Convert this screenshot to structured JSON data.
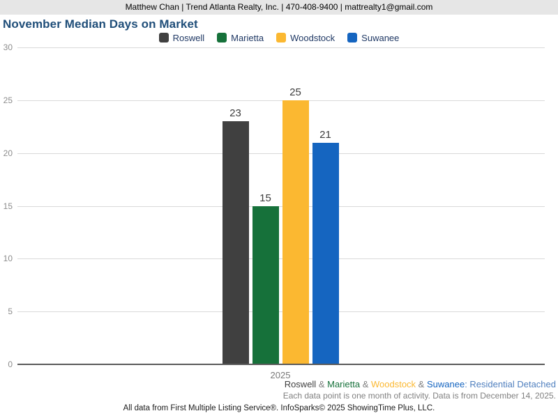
{
  "header": {
    "contact_line": "Matthew Chan | Trend Atlanta Realty, Inc. | 470-408-9400 | mattrealty1@gmail.com"
  },
  "title": "November Median Days on Market",
  "chart_data": {
    "type": "bar",
    "title": "November Median Days on Market",
    "categories": [
      "2025"
    ],
    "series": [
      {
        "name": "Roswell",
        "values": [
          23
        ],
        "color": "#404040"
      },
      {
        "name": "Marietta",
        "values": [
          15
        ],
        "color": "#16713a"
      },
      {
        "name": "Woodstock",
        "values": [
          25
        ],
        "color": "#fbb831"
      },
      {
        "name": "Suwanee",
        "values": [
          21
        ],
        "color": "#1565c0"
      }
    ],
    "ylim": [
      0,
      30
    ],
    "yticks": [
      0,
      5,
      10,
      15,
      20,
      25,
      30
    ],
    "grid": true,
    "legend_position": "top",
    "xlabel": "",
    "ylabel": ""
  },
  "footer": {
    "series_segments": [
      {
        "text": "Roswell",
        "color": "#404040"
      },
      {
        "text": " & ",
        "color": "#7f7f7f"
      },
      {
        "text": "Marietta",
        "color": "#16713a"
      },
      {
        "text": " & ",
        "color": "#7f7f7f"
      },
      {
        "text": "Woodstock",
        "color": "#fbb831"
      },
      {
        "text": " & ",
        "color": "#7f7f7f"
      },
      {
        "text": "Suwanee",
        "color": "#1565c0"
      },
      {
        "text": ": Residential Detached",
        "color": "#4f7fbe"
      }
    ],
    "note": "Each data point is one month of activity. Data is from December 14, 2025.",
    "attribution": "All data from First Multiple Listing Service®. InfoSparks© 2025 ShowingTime Plus, LLC."
  }
}
